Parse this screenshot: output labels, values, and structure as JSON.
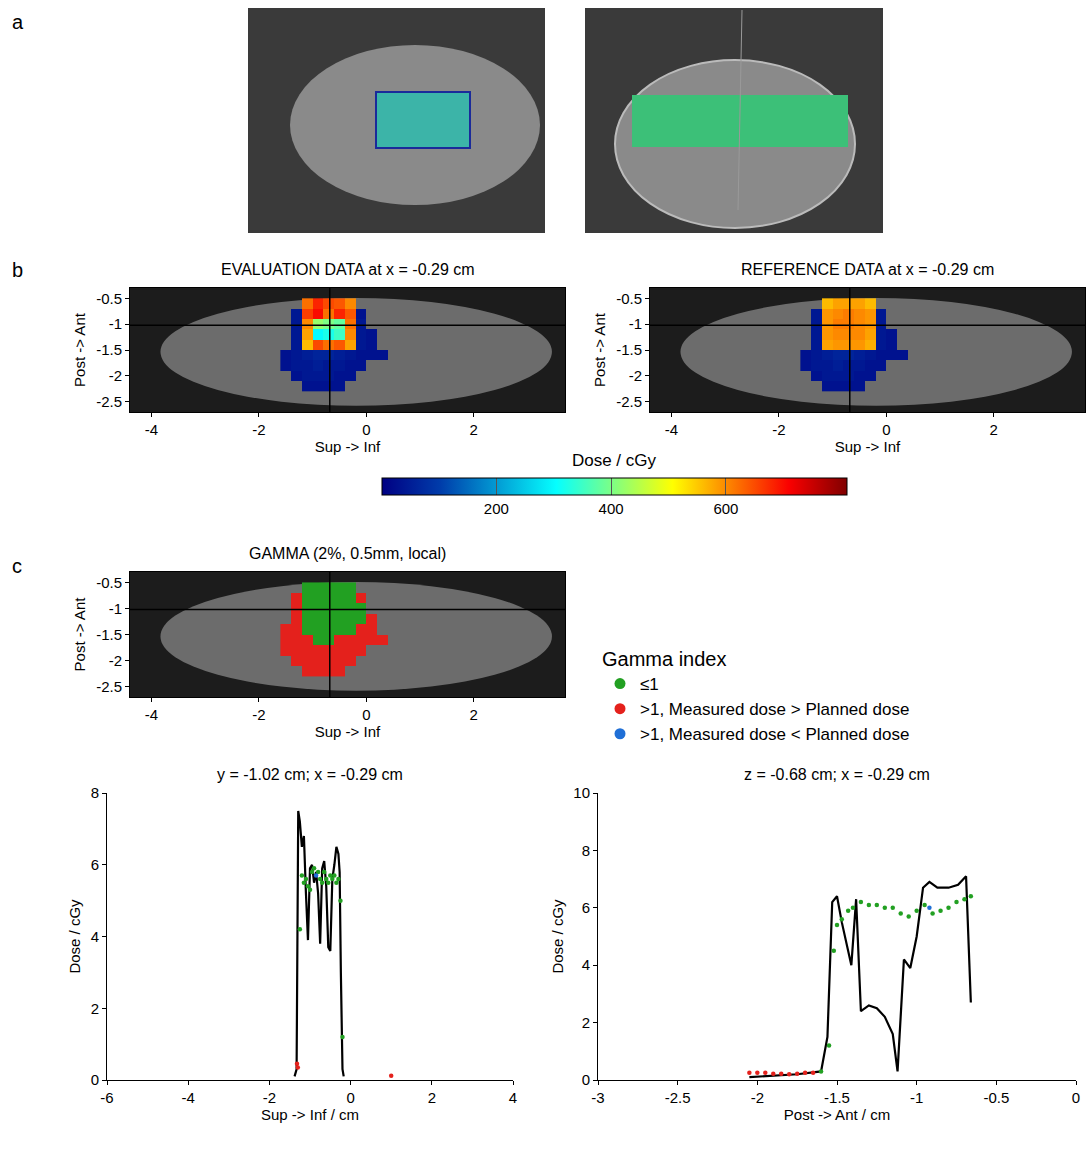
{
  "panel_labels": [
    "a",
    "b",
    "c"
  ],
  "chart_data": [
    {
      "type": "heatmap",
      "title": "EVALUATION DATA at x = -0.29 cm",
      "x_label": "Sup -> Inf",
      "y_label": "Post -> Ant",
      "xlim": [
        -4.4,
        3.7
      ],
      "ylim": [
        -2.7,
        -0.3
      ],
      "xticks": [
        -4,
        -2,
        0,
        2
      ],
      "yticks": [
        -0.5,
        -1,
        -1.5,
        -2,
        -2.5
      ],
      "crosshair": {
        "x": -0.68,
        "y": -1.02
      },
      "x": [
        -1.5,
        -1.3,
        -1.1,
        -0.9,
        -0.7,
        -0.5,
        -0.3,
        -0.1,
        0.1,
        0.3,
        0.5,
        0.7
      ],
      "y": [
        -0.6,
        -0.8,
        -1.0,
        -1.2,
        -1.4,
        -1.6,
        -1.8,
        -2.0,
        -2.2
      ],
      "z": [
        [
          null,
          null,
          620,
          680,
          650,
          640,
          600,
          null,
          null,
          null,
          null,
          null
        ],
        [
          null,
          40,
          660,
          700,
          620,
          680,
          640,
          30,
          null,
          null,
          null,
          null
        ],
        [
          null,
          40,
          600,
          420,
          400,
          380,
          620,
          40,
          null,
          null,
          null,
          null
        ],
        [
          null,
          40,
          580,
          300,
          320,
          350,
          600,
          40,
          30,
          null,
          null,
          null
        ],
        [
          null,
          40,
          560,
          650,
          620,
          640,
          580,
          40,
          30,
          null,
          null,
          null
        ],
        [
          30,
          40,
          50,
          60,
          60,
          50,
          40,
          30,
          30,
          30,
          null,
          null
        ],
        [
          30,
          40,
          40,
          50,
          40,
          40,
          30,
          30,
          null,
          null,
          null,
          null
        ],
        [
          null,
          30,
          40,
          40,
          40,
          30,
          30,
          null,
          null,
          null,
          null,
          null
        ],
        [
          null,
          null,
          30,
          30,
          30,
          30,
          null,
          null,
          null,
          null,
          null,
          null
        ]
      ],
      "colorbar": {
        "title": "Dose / cGy",
        "range": [
          0,
          810
        ],
        "ticks": [
          200,
          400,
          600
        ]
      }
    },
    {
      "type": "heatmap",
      "title": "REFERENCE DATA at x = -0.29 cm",
      "x_label": "Sup -> Inf",
      "y_label": "Post -> Ant",
      "xlim": [
        -4.4,
        3.7
      ],
      "ylim": [
        -2.7,
        -0.3
      ],
      "xticks": [
        -4,
        -2,
        0,
        2
      ],
      "yticks": [
        -0.5,
        -1,
        -1.5,
        -2,
        -2.5
      ],
      "crosshair": {
        "x": -0.68,
        "y": -1.02
      },
      "x": [
        -1.5,
        -1.3,
        -1.1,
        -0.9,
        -0.7,
        -0.5,
        -0.3,
        -0.1,
        0.1,
        0.3,
        0.5,
        0.7
      ],
      "y": [
        -0.6,
        -0.8,
        -1.0,
        -1.2,
        -1.4,
        -1.6,
        -1.8,
        -2.0,
        -2.2
      ],
      "z": [
        [
          null,
          null,
          560,
          580,
          580,
          580,
          560,
          null,
          null,
          null,
          null,
          null
        ],
        [
          null,
          40,
          590,
          600,
          610,
          600,
          590,
          40,
          null,
          null,
          null,
          null
        ],
        [
          null,
          40,
          590,
          610,
          610,
          600,
          590,
          40,
          null,
          null,
          null,
          null
        ],
        [
          null,
          40,
          590,
          600,
          600,
          600,
          580,
          40,
          30,
          null,
          null,
          null
        ],
        [
          null,
          40,
          580,
          590,
          590,
          590,
          570,
          40,
          30,
          null,
          null,
          null
        ],
        [
          30,
          40,
          50,
          60,
          60,
          50,
          40,
          30,
          30,
          30,
          null,
          null
        ],
        [
          30,
          40,
          40,
          50,
          40,
          40,
          30,
          30,
          null,
          null,
          null,
          null
        ],
        [
          null,
          30,
          40,
          40,
          40,
          30,
          30,
          null,
          null,
          null,
          null,
          null
        ],
        [
          null,
          null,
          30,
          30,
          30,
          30,
          null,
          null,
          null,
          null,
          null,
          null
        ]
      ]
    },
    {
      "type": "heatmap",
      "title": "GAMMA (2%, 0.5mm, local)",
      "y_label": "Post -> Ant",
      "x_label": "Sup -> Inf",
      "xlim": [
        -4.4,
        3.7
      ],
      "ylim": [
        -2.7,
        -0.3
      ],
      "xticks": [
        -4,
        -2,
        0,
        2
      ],
      "yticks": [
        -0.5,
        -1,
        -1.5,
        -2,
        -2.5
      ],
      "crosshair": {
        "x": -0.68,
        "y": -1.02
      },
      "legend": "right",
      "legend_title": "Gamma index",
      "series": [
        {
          "name": "≤1",
          "color": "#22a022"
        },
        {
          "name": ">1, Measured dose > Planned dose",
          "color": "#e4211c"
        },
        {
          "name": ">1, Measured dose < Planned dose",
          "color": "#1f6fd6"
        }
      ],
      "x": [
        -1.5,
        -1.3,
        -1.1,
        -0.9,
        -0.7,
        -0.5,
        -0.3,
        -0.1,
        0.1,
        0.3,
        0.5,
        0.7
      ],
      "y": [
        -0.6,
        -0.8,
        -1.0,
        -1.2,
        -1.4,
        -1.6,
        -1.8,
        -2.0,
        -2.2
      ],
      "z": [
        [
          null,
          null,
          0,
          0,
          0,
          0,
          0,
          null,
          null,
          null,
          null,
          null
        ],
        [
          null,
          1,
          0,
          0,
          0,
          0,
          0,
          1,
          null,
          null,
          null,
          null
        ],
        [
          null,
          1,
          0,
          0,
          0,
          0,
          0,
          0,
          null,
          null,
          null,
          null
        ],
        [
          null,
          1,
          0,
          0,
          0,
          0,
          0,
          0,
          1,
          null,
          null,
          null
        ],
        [
          1,
          1,
          0,
          0,
          0,
          0,
          0,
          1,
          1,
          null,
          null,
          null
        ],
        [
          1,
          1,
          1,
          0,
          0,
          1,
          1,
          1,
          1,
          1,
          null,
          null
        ],
        [
          1,
          1,
          1,
          1,
          1,
          1,
          1,
          1,
          null,
          null,
          null,
          null
        ],
        [
          null,
          1,
          1,
          1,
          1,
          1,
          1,
          null,
          null,
          null,
          null,
          null
        ],
        [
          null,
          null,
          1,
          1,
          1,
          1,
          null,
          null,
          null,
          null,
          null,
          null
        ]
      ]
    },
    {
      "type": "line",
      "title": "y = -1.02 cm; x = -0.29 cm",
      "x_label": "Sup -> Inf / cm",
      "y_label": "Dose / cGy",
      "xlim": [
        -6,
        4
      ],
      "xticks": [
        -6,
        -4,
        -2,
        0,
        2,
        4
      ],
      "ylim": [
        0,
        8
      ],
      "yticks": [
        0,
        2,
        4,
        6,
        8
      ],
      "series": [
        {
          "type": "line",
          "color": "#000000",
          "x": [
            -1.38,
            -1.33,
            -1.29,
            -1.25,
            -1.2,
            -1.15,
            -1.1,
            -1.05,
            -1.0,
            -0.95,
            -0.9,
            -0.85,
            -0.8,
            -0.75,
            -0.7,
            -0.65,
            -0.6,
            -0.55,
            -0.5,
            -0.45,
            -0.4,
            -0.35,
            -0.3,
            -0.27,
            -0.24,
            -0.2,
            -0.17
          ],
          "values": [
            0.1,
            0.3,
            7.5,
            7.2,
            6.5,
            6.8,
            5.2,
            3.9,
            5.9,
            6.0,
            5.5,
            5.8,
            5.2,
            3.8,
            5.9,
            6.1,
            5.4,
            3.7,
            3.6,
            5.6,
            6.0,
            6.5,
            6.3,
            5.8,
            3.0,
            0.3,
            0.1
          ]
        },
        {
          "type": "scatter",
          "color": "#22a022",
          "x": [
            -1.25,
            -1.2,
            -1.15,
            -1.1,
            -1.05,
            -1.0,
            -0.95,
            -0.9,
            -0.8,
            -0.75,
            -0.7,
            -0.65,
            -0.6,
            -0.55,
            -0.5,
            -0.45,
            -0.4,
            -0.35,
            -0.3,
            -0.25,
            -0.2
          ],
          "values": [
            4.2,
            5.7,
            5.5,
            5.6,
            5.4,
            5.3,
            5.8,
            5.9,
            5.8,
            5.6,
            5.5,
            5.8,
            5.6,
            5.5,
            5.7,
            5.6,
            5.7,
            5.5,
            5.6,
            5.0,
            1.2
          ]
        },
        {
          "type": "scatter",
          "color": "#e4211c",
          "x": [
            -1.32,
            -1.3,
            1.0
          ],
          "values": [
            0.45,
            0.35,
            0.12
          ]
        },
        {
          "type": "scatter",
          "color": "#1f6fd6",
          "x": [
            -0.85
          ],
          "values": [
            5.7
          ]
        }
      ]
    },
    {
      "type": "line",
      "title": "z = -0.68 cm; x = -0.29 cm",
      "x_label": "Post -> Ant / cm",
      "y_label": "Dose / cGy",
      "xlim": [
        -3,
        0
      ],
      "xticks": [
        -3,
        -2.5,
        -2,
        -1.5,
        -1,
        -0.5,
        0
      ],
      "ylim": [
        0,
        10
      ],
      "yticks": [
        0,
        2,
        4,
        6,
        8,
        10
      ],
      "series": [
        {
          "type": "line",
          "color": "#000000",
          "x": [
            -2.05,
            -1.9,
            -1.75,
            -1.6,
            -1.56,
            -1.53,
            -1.5,
            -1.47,
            -1.44,
            -1.41,
            -1.38,
            -1.35,
            -1.3,
            -1.25,
            -1.2,
            -1.15,
            -1.12,
            -1.08,
            -1.04,
            -1.0,
            -0.96,
            -0.92,
            -0.87,
            -0.8,
            -0.74,
            -0.69,
            -0.66
          ],
          "values": [
            0.1,
            0.15,
            0.2,
            0.3,
            1.5,
            6.2,
            6.4,
            5.5,
            4.8,
            4.0,
            6.3,
            2.4,
            2.6,
            2.5,
            2.2,
            1.6,
            0.3,
            4.2,
            3.9,
            5.0,
            6.7,
            6.9,
            6.7,
            6.7,
            6.8,
            7.1,
            2.7
          ]
        },
        {
          "type": "scatter",
          "color": "#22a022",
          "x": [
            -1.6,
            -1.55,
            -1.52,
            -1.5,
            -1.47,
            -1.43,
            -1.4,
            -1.35,
            -1.3,
            -1.25,
            -1.2,
            -1.15,
            -1.1,
            -1.05,
            -1.0,
            -0.95,
            -0.9,
            -0.85,
            -0.8,
            -0.75,
            -0.7,
            -0.66
          ],
          "values": [
            0.3,
            1.2,
            4.5,
            5.4,
            5.6,
            5.9,
            6.0,
            6.2,
            6.1,
            6.1,
            6.0,
            6.0,
            5.8,
            5.7,
            5.9,
            6.1,
            5.8,
            5.9,
            6.0,
            6.2,
            6.3,
            6.4
          ]
        },
        {
          "type": "scatter",
          "color": "#e4211c",
          "x": [
            -2.05,
            -2.0,
            -1.95,
            -1.9,
            -1.85,
            -1.8,
            -1.75,
            -1.7,
            -1.65
          ],
          "values": [
            0.25,
            0.25,
            0.25,
            0.22,
            0.22,
            0.2,
            0.22,
            0.25,
            0.25
          ]
        },
        {
          "type": "scatter",
          "color": "#1f6fd6",
          "x": [
            -0.92
          ],
          "values": [
            6.0
          ]
        }
      ]
    }
  ]
}
